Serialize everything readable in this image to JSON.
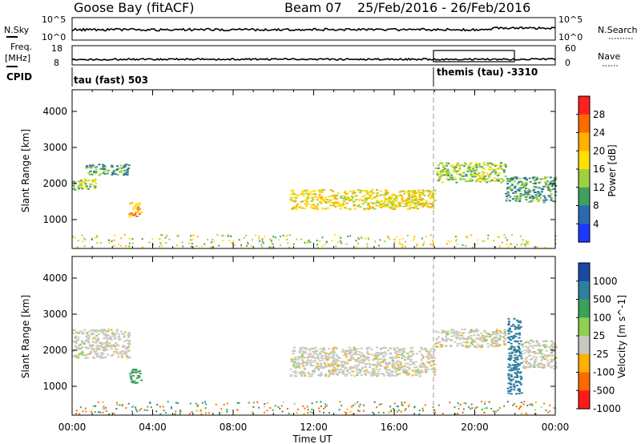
{
  "header": {
    "station": "Goose Bay (fitACF)",
    "beam": "Beam 07",
    "date_range": "25/Feb/2016 - 26/Feb/2016"
  },
  "summary_panels": {
    "nsky_label": "N.Sky",
    "nsky_ticks": [
      "10^5",
      "10^0"
    ],
    "nsearch_label": "N.Search",
    "nsearch_ticks": [
      "10^5",
      "10^0"
    ],
    "freq_label": "Freq.",
    "freq_unit": "[MHz]",
    "freq_ticks": [
      "18",
      "8"
    ],
    "nave_label": "Nave",
    "nave_ticks": [
      "60",
      "0"
    ],
    "cpid_label": "CPID",
    "cpid_segments": [
      {
        "label": "tau (fast) 503",
        "start_hour": 0,
        "end_hour": 18
      },
      {
        "label": "themis (tau) -3310",
        "start_hour": 18,
        "end_hour": 24
      }
    ]
  },
  "chart_data": [
    {
      "type": "heatmap",
      "title": "",
      "xlabel": "Time UT",
      "ylabel": "Slant Range [km]",
      "xlim": [
        0,
        24
      ],
      "ylim": [
        200,
        4600
      ],
      "x_ticks": [
        "00:00",
        "04:00",
        "08:00",
        "12:00",
        "16:00",
        "20:00",
        "00:00"
      ],
      "y_ticks": [
        "1000",
        "2000",
        "3000",
        "4000"
      ],
      "colorbar": {
        "label": "Power [dB]",
        "ticks": [
          "28",
          "24",
          "20",
          "16",
          "12",
          "8",
          "4"
        ],
        "colors": [
          "#ff2020",
          "#ff6a00",
          "#ffb000",
          "#ffe000",
          "#a0d040",
          "#40a060",
          "#2a6ab0",
          "#1a3aff"
        ]
      },
      "regions": [
        {
          "t0": 0.0,
          "t1": 1.2,
          "r0": 1850,
          "r1": 2150,
          "power": 12
        },
        {
          "t0": 0.6,
          "t1": 2.8,
          "r0": 2250,
          "r1": 2550,
          "power": 8
        },
        {
          "t0": 2.8,
          "t1": 3.4,
          "r0": 1100,
          "r1": 1500,
          "power": 20
        },
        {
          "t0": 10.8,
          "t1": 18.0,
          "r0": 1300,
          "r1": 1850,
          "power": 16
        },
        {
          "t0": 18.0,
          "t1": 21.5,
          "r0": 2050,
          "r1": 2600,
          "power": 12
        },
        {
          "t0": 21.5,
          "t1": 24.0,
          "r0": 1500,
          "r1": 2200,
          "power": 8
        }
      ]
    },
    {
      "type": "heatmap",
      "title": "",
      "xlabel": "Time UT",
      "ylabel": "Slant Range [km]",
      "xlim": [
        0,
        24
      ],
      "ylim": [
        200,
        4600
      ],
      "x_ticks": [
        "00:00",
        "04:00",
        "08:00",
        "12:00",
        "16:00",
        "20:00",
        "00:00"
      ],
      "y_ticks": [
        "1000",
        "2000",
        "3000",
        "4000"
      ],
      "colorbar": {
        "label": "Velocity [m s^-1]",
        "ticks": [
          "1000",
          "500",
          "100",
          "25",
          "-25",
          "-100",
          "-500",
          "-1000"
        ],
        "colors": [
          "#1a4aa8",
          "#2f7fa0",
          "#3aa05a",
          "#90d050",
          "#c8c8c0",
          "#ffb000",
          "#ff6a00",
          "#ff1a1a"
        ]
      },
      "regions": [
        {
          "t0": 0.0,
          "t1": 2.8,
          "r0": 1800,
          "r1": 2600,
          "velocity": 0
        },
        {
          "t0": 2.8,
          "t1": 3.4,
          "r0": 1100,
          "r1": 1500,
          "velocity": 100
        },
        {
          "t0": 10.8,
          "t1": 18.0,
          "r0": 1300,
          "r1": 2100,
          "velocity": 0
        },
        {
          "t0": 18.0,
          "t1": 21.5,
          "r0": 2100,
          "r1": 2600,
          "velocity": 0
        },
        {
          "t0": 21.6,
          "t1": 22.3,
          "r0": 800,
          "r1": 2900,
          "velocity": 500
        },
        {
          "t0": 22.3,
          "t1": 24.0,
          "r0": 1500,
          "r1": 2300,
          "velocity": 0
        }
      ]
    }
  ]
}
